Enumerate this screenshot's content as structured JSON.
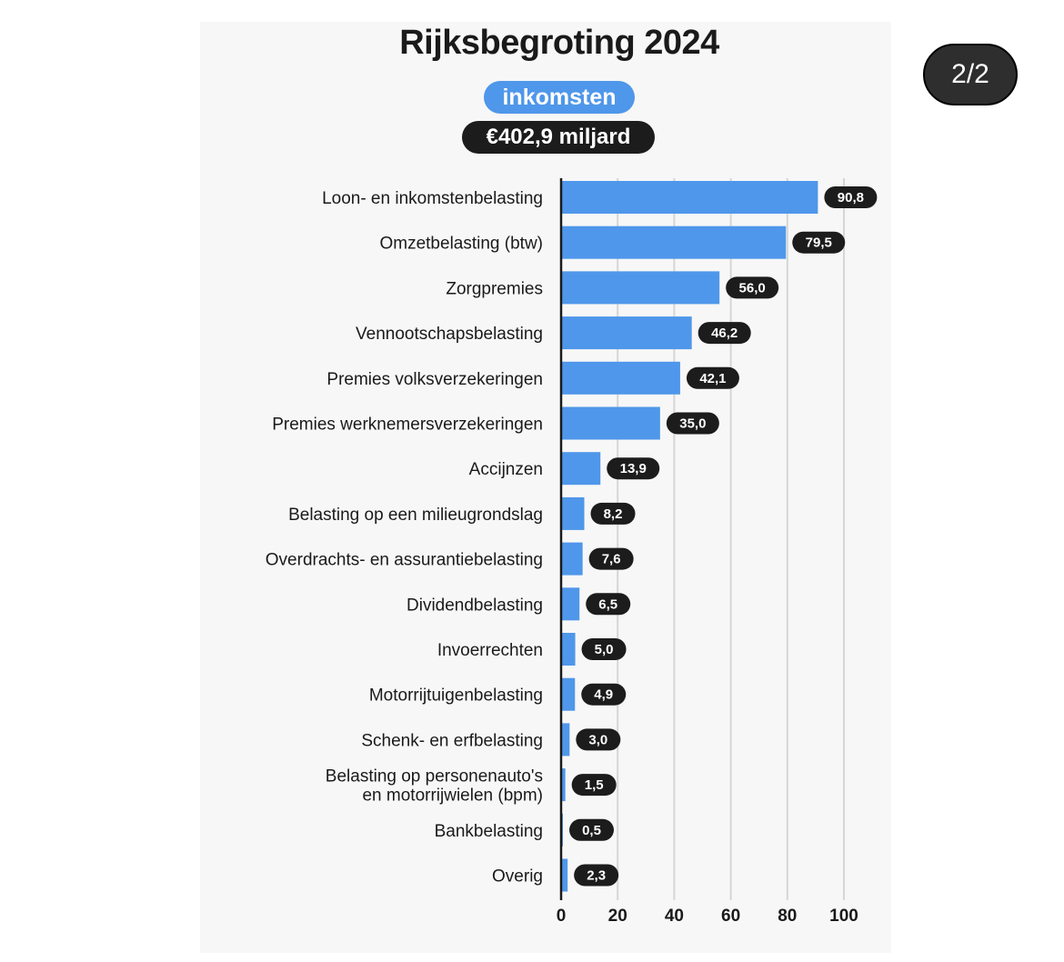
{
  "header": {
    "title": "Rijksbegroting 2024",
    "category_pill": "inkomsten",
    "total_pill": "€402,9 miljard",
    "page_indicator": "2/2"
  },
  "colors": {
    "bar": "#4f97ea",
    "value_label_bg": "#1c1c1c",
    "grid": "#d6d6d6"
  },
  "chart_data": {
    "type": "bar",
    "orientation": "horizontal",
    "title": "Rijksbegroting 2024",
    "categories": [
      [
        "Loon- en inkomstenbelasting"
      ],
      [
        "Omzetbelasting (btw)"
      ],
      [
        "Zorgpremies"
      ],
      [
        "Vennootschapsbelasting"
      ],
      [
        "Premies volksverzekeringen"
      ],
      [
        "Premies werknemersverzekeringen"
      ],
      [
        "Accijnzen"
      ],
      [
        "Belasting op een milieugrondslag"
      ],
      [
        "Overdrachts- en assurantiebelasting"
      ],
      [
        "Dividendbelasting"
      ],
      [
        "Invoerrechten"
      ],
      [
        "Motorrijtuigenbelasting"
      ],
      [
        "Schenk- en erfbelasting"
      ],
      [
        "Belasting op personenauto's",
        "en motorrijwielen (bpm)"
      ],
      [
        "Bankbelasting"
      ],
      [
        "Overig"
      ]
    ],
    "values": [
      90.8,
      79.5,
      56.0,
      46.2,
      42.1,
      35.0,
      13.9,
      8.2,
      7.6,
      6.5,
      5.0,
      4.9,
      3.0,
      1.5,
      0.5,
      2.3
    ],
    "value_labels": [
      "90,8",
      "79,5",
      "56,0",
      "46,2",
      "42,1",
      "35,0",
      "13,9",
      "8,2",
      "7,6",
      "6,5",
      "5,0",
      "4,9",
      "3,0",
      "1,5",
      "0,5",
      "2,3"
    ],
    "xlim": [
      0,
      100
    ],
    "xticks": [
      0,
      20,
      40,
      60,
      80,
      100
    ],
    "grid": true,
    "xlabel": "",
    "ylabel": ""
  }
}
